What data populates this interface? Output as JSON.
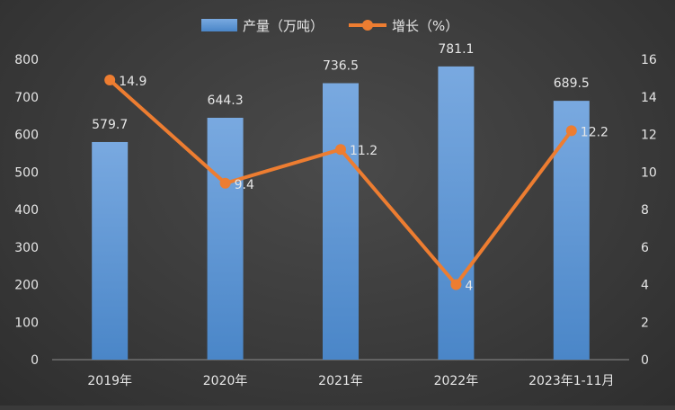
{
  "chart_data": {
    "type": "bar+line",
    "categories": [
      "2019年",
      "2020年",
      "2021年",
      "2022年",
      "2023年1-11月"
    ],
    "series": [
      {
        "name": "产量（万吨）",
        "type": "bar",
        "axis": "left",
        "values": [
          579.7,
          644.3,
          736.5,
          781.1,
          689.5
        ]
      },
      {
        "name": "增长（%）",
        "type": "line",
        "axis": "right",
        "values": [
          14.9,
          9.4,
          11.2,
          4,
          12.2
        ]
      }
    ],
    "bar_labels": [
      "579.7",
      "644.3",
      "736.5",
      "781.1",
      "689.5"
    ],
    "line_labels": [
      "14.9",
      "9.4",
      "11.2",
      "4",
      "12.2"
    ],
    "y_left": {
      "min": 0,
      "max": 800,
      "ticks": [
        "0",
        "100",
        "200",
        "300",
        "400",
        "500",
        "600",
        "700",
        "800"
      ]
    },
    "y_right": {
      "min": 0,
      "max": 16,
      "ticks": [
        "0",
        "2",
        "4",
        "6",
        "8",
        "10",
        "12",
        "14",
        "16"
      ]
    },
    "legend_position": "top-center",
    "grid": false
  },
  "colors": {
    "bar_top": "#79a9e0",
    "bar_bottom": "#4a86c8",
    "line": "#ed7d31",
    "text": "#e6e6e6",
    "axis": "#8c8c8c"
  }
}
